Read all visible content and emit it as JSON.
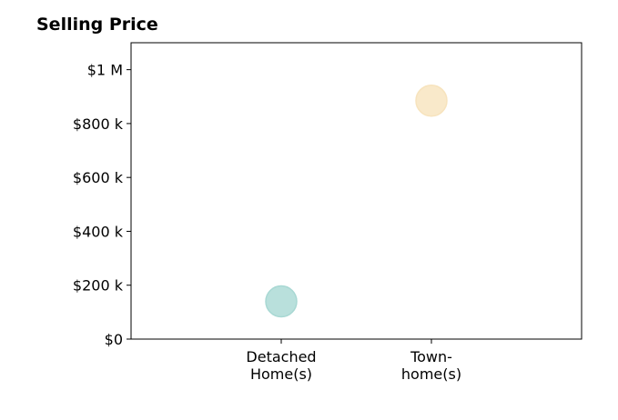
{
  "chart_data": {
    "type": "scatter",
    "title": "Selling Price",
    "xlabel": "",
    "ylabel": "",
    "categories": [
      [
        "Detached",
        "Home(s)"
      ],
      [
        "Town-",
        "home(s)"
      ]
    ],
    "points": [
      {
        "category_index": 0,
        "value": 140000,
        "color": "#a8d8d3"
      },
      {
        "category_index": 1,
        "value": 885000,
        "color": "#f7e3bd"
      }
    ],
    "ylim": [
      0,
      1100000
    ],
    "yticks": [
      {
        "value": 0,
        "label": "$0"
      },
      {
        "value": 200000,
        "label": "$200 k"
      },
      {
        "value": 400000,
        "label": "$400 k"
      },
      {
        "value": 600000,
        "label": "$600 k"
      },
      {
        "value": 800000,
        "label": "$800 k"
      },
      {
        "value": 1000000,
        "label": "$1 M"
      }
    ],
    "grid": false,
    "legend": "none"
  }
}
